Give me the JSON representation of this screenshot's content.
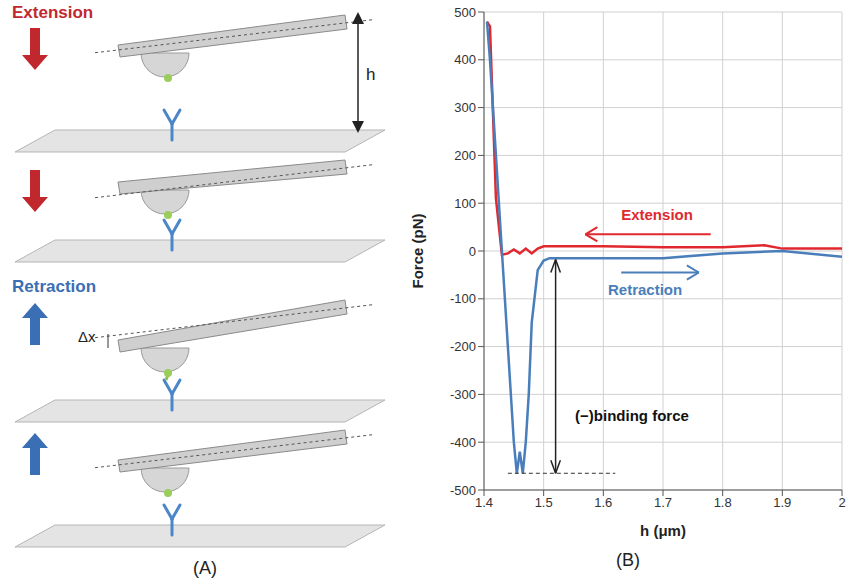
{
  "panel_labels": [
    "(A)",
    "(B)"
  ],
  "diagram": {
    "top_label": "Extension",
    "bottom_label": "Retraction",
    "height_label": "h",
    "deflection_label": "Δx"
  },
  "chart_data": {
    "type": "line",
    "x_label": "h (μm)",
    "y_label": "Force (pN)",
    "xlim": [
      1.4,
      2
    ],
    "xticks": [
      1.4,
      1.5,
      1.6,
      1.7,
      1.8,
      1.9,
      2
    ],
    "ylim": [
      -500,
      500
    ],
    "yticks": [
      -500,
      -400,
      -300,
      -200,
      -100,
      0,
      100,
      200,
      300,
      400,
      500
    ],
    "grid": true,
    "series": [
      {
        "name": "Extension",
        "color": "#e0282e",
        "x": [
          2.0,
          1.9,
          1.87,
          1.8,
          1.7,
          1.6,
          1.5,
          1.49,
          1.48,
          1.47,
          1.46,
          1.45,
          1.44,
          1.43,
          1.42,
          1.41,
          1.405
        ],
        "values": [
          5,
          5,
          12,
          8,
          8,
          10,
          10,
          5,
          -5,
          5,
          -5,
          3,
          -5,
          -8,
          110,
          470,
          480
        ]
      },
      {
        "name": "Retraction",
        "color": "#4a7ebb",
        "x": [
          1.405,
          1.41,
          1.42,
          1.43,
          1.44,
          1.45,
          1.455,
          1.46,
          1.465,
          1.47,
          1.475,
          1.48,
          1.49,
          1.5,
          1.51,
          1.6,
          1.7,
          1.8,
          1.9,
          2.0
        ],
        "values": [
          480,
          400,
          200,
          0,
          -200,
          -400,
          -465,
          -420,
          -465,
          -400,
          -300,
          -150,
          -40,
          -20,
          -15,
          -15,
          -15,
          -5,
          0,
          -12
        ]
      }
    ],
    "annotations": [
      {
        "text": "(−)binding force",
        "value": -465
      }
    ]
  }
}
